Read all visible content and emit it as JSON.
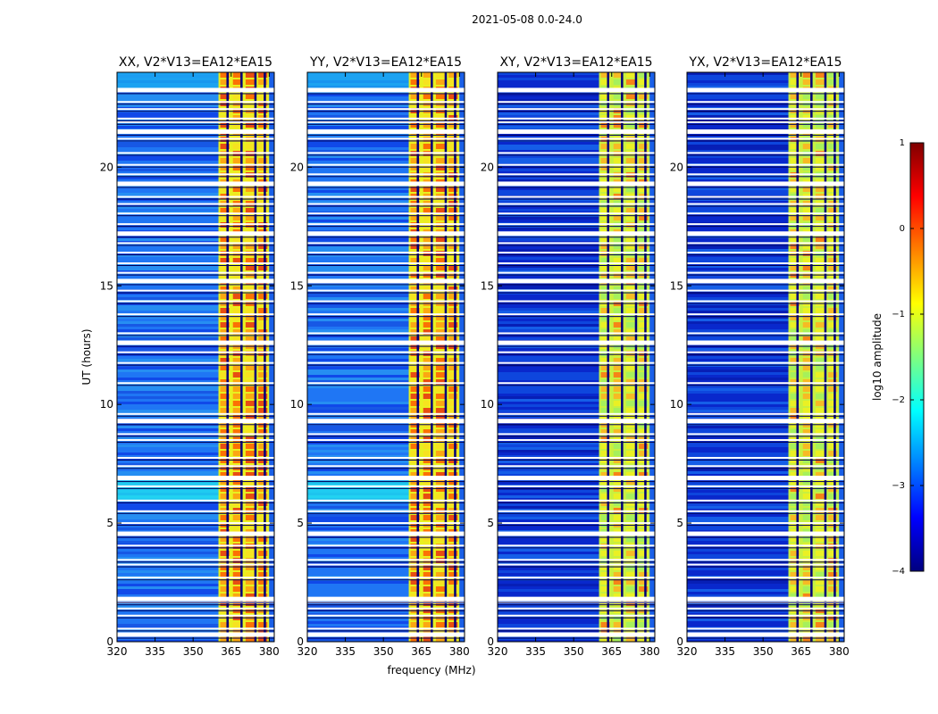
{
  "chart_data": {
    "type": "heatmap",
    "title": "2021-05-08 0.0-24.0",
    "xlabel": "frequency (MHz)",
    "ylabel": "UT (hours)",
    "xlim": [
      320,
      382
    ],
    "ylim": [
      0,
      24
    ],
    "xticks": [
      320,
      335,
      350,
      365,
      380
    ],
    "yticks": [
      0,
      5,
      10,
      15,
      20
    ],
    "panels": [
      {
        "title": "XX, V2*V13=EA12*EA15",
        "level": "high"
      },
      {
        "title": "YY, V2*V13=EA12*EA15",
        "level": "high"
      },
      {
        "title": "XY, V2*V13=EA12*EA15",
        "level": "low"
      },
      {
        "title": "YX, V2*V13=EA12*EA15",
        "level": "low"
      }
    ],
    "strong_band_mhz": [
      360,
      380
    ],
    "colorbar": {
      "label": "log10 amplitude",
      "min": -4,
      "max": 1,
      "ticks": [
        1,
        0,
        -1,
        -2,
        -3,
        -4
      ],
      "tick_labels": [
        "1",
        "0",
        "−1",
        "−2",
        "−3",
        "−4"
      ],
      "colormap": [
        "#00007f",
        "#0000ff",
        "#007fff",
        "#00ffff",
        "#7fff7f",
        "#ffff00",
        "#ff7f00",
        "#ff0000",
        "#7f0000"
      ]
    },
    "flagged_ut_hours": [
      0.3,
      0.55,
      1.1,
      1.4,
      1.65,
      1.8,
      2.7,
      3.25,
      3.45,
      4.05,
      4.55,
      5.0,
      5.5,
      5.95,
      6.55,
      6.9,
      7.4,
      7.75,
      8.5,
      8.75,
      9.3,
      9.6,
      10.9,
      11.75,
      12.2,
      12.6,
      13.0,
      13.8,
      14.35,
      14.8,
      15.2,
      15.55,
      15.95,
      16.4,
      16.8,
      17.2,
      17.6,
      18.05,
      18.45,
      18.75,
      19.3,
      19.7,
      20.1,
      20.6,
      21.2,
      21.5,
      21.9,
      22.05,
      22.45,
      22.75,
      23.25
    ],
    "flagged_channels_mhz": [
      363.5,
      369.0,
      374.5,
      378.2
    ]
  }
}
